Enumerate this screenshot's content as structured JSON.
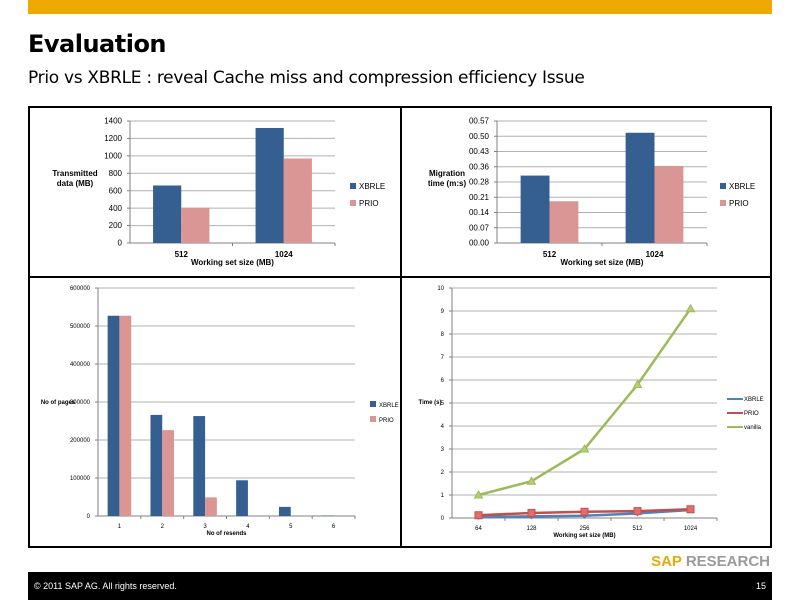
{
  "slide": {
    "title": "Evaluation",
    "subtitle": "Prio vs XBRLE : reveal Cache miss and compression efficiency Issue",
    "brand_sap": "SAP",
    "brand_research": "RESEARCH",
    "copyright": "© 2011 SAP AG. All rights reserved.",
    "page_number": "15",
    "accent_color": "#eeaa00"
  },
  "chart_data": [
    {
      "type": "bar",
      "title": "",
      "xlabel": "Working set size (MB)",
      "ylabel": "Transmitted data (MB)",
      "ylabel_lines": [
        "Transmitted",
        "data (MB)"
      ],
      "categories": [
        "512",
        "1024"
      ],
      "ylim": [
        0,
        1400
      ],
      "yticks": [
        "0",
        "200",
        "400",
        "600",
        "800",
        "1000",
        "1200",
        "1400"
      ],
      "grid": true,
      "legend": "right",
      "series": [
        {
          "name": "XBRLE",
          "color": "#365f91",
          "values": [
            660,
            1320
          ]
        },
        {
          "name": "PRIO",
          "color": "#d99694",
          "values": [
            405,
            970
          ]
        }
      ]
    },
    {
      "type": "bar",
      "title": "",
      "xlabel": "Working set size (MB)",
      "ylabel": "Migration time (m:s)",
      "ylabel_lines": [
        "Migration",
        "time (m:s)"
      ],
      "categories": [
        "512",
        "1024"
      ],
      "ylim": [
        0,
        57
      ],
      "yticks": [
        "00.00",
        "00.07",
        "00.14",
        "00.21",
        "00.28",
        "00.36",
        "00.43",
        "00.50",
        "00.57"
      ],
      "grid": true,
      "legend": "right",
      "series": [
        {
          "name": "XBRLE",
          "color": "#365f91",
          "values": [
            31.5,
            51.5
          ]
        },
        {
          "name": "PRIO",
          "color": "#d99694",
          "values": [
            19.5,
            36
          ]
        }
      ]
    },
    {
      "type": "bar",
      "title": "",
      "xlabel": "No of resends",
      "ylabel": "No of pages",
      "ylabel_lines": [
        "No of pages"
      ],
      "categories": [
        "1",
        "2",
        "3",
        "4",
        "5",
        "6"
      ],
      "ylim": [
        0,
        600000
      ],
      "yticks": [
        "0",
        "100000",
        "200000",
        "300000",
        "400000",
        "500000",
        "600000"
      ],
      "grid": true,
      "legend": "right",
      "series": [
        {
          "name": "XBRLE",
          "color": "#365f91",
          "values": [
            527000,
            266000,
            263000,
            94000,
            24000,
            1000
          ]
        },
        {
          "name": "PRIO",
          "color": "#d99694",
          "values": [
            527000,
            226000,
            49000,
            0,
            0,
            0
          ]
        }
      ]
    },
    {
      "type": "line",
      "title": "",
      "xlabel": "Working set size (MB)",
      "ylabel": "Time (s)",
      "ylabel_lines": [
        "Time (s)"
      ],
      "categories": [
        "64",
        "128",
        "256",
        "512",
        "1024"
      ],
      "ylim": [
        0,
        10
      ],
      "yticks": [
        "0",
        "1",
        "2",
        "3",
        "4",
        "5",
        "6",
        "7",
        "8",
        "9",
        "10"
      ],
      "grid": true,
      "legend": "right",
      "series": [
        {
          "name": "XBRLE",
          "color": "#4f81bd",
          "marker": "diamond",
          "values": [
            0.05,
            0.07,
            0.1,
            0.2,
            0.35
          ]
        },
        {
          "name": "PRIO",
          "color": "#c0504d",
          "marker": "square",
          "values": [
            0.12,
            0.22,
            0.27,
            0.3,
            0.38
          ]
        },
        {
          "name": "vanilla",
          "color": "#9bbb59",
          "marker": "triangle",
          "values": [
            1.0,
            1.6,
            3.0,
            5.8,
            9.1
          ]
        }
      ]
    }
  ]
}
